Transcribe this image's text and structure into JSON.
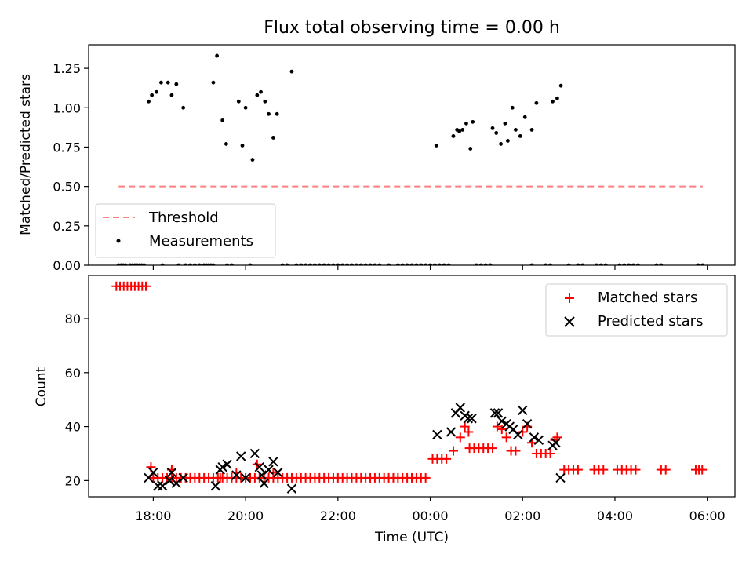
{
  "chart_data": [
    {
      "type": "scatter",
      "title": "Flux total observing time = 0.00 h",
      "xlabel": "",
      "ylabel": "Matched/Predicted stars",
      "xlim_hours": [
        16.6,
        30.6
      ],
      "ylim": [
        0,
        1.4
      ],
      "yticks": [
        0.0,
        0.25,
        0.5,
        0.75,
        1.0,
        1.25
      ],
      "ytick_labels": [
        "0.00",
        "0.25",
        "0.50",
        "0.75",
        "1.00",
        "1.25"
      ],
      "xticks_hours": [
        18,
        20,
        22,
        24,
        26,
        28,
        30
      ],
      "show_xtick_labels": false,
      "legend": [
        "Threshold",
        "Measurements"
      ],
      "legend_position": "lower-left",
      "threshold": {
        "name": "Threshold",
        "y": 0.5,
        "x_start": 17.25,
        "x_end": 29.9,
        "color": "#ff7f7f",
        "style": "dashed"
      },
      "measurements": {
        "name": "Measurements",
        "color": "#000000",
        "x": [
          17.9,
          17.97,
          18.07,
          18.17,
          18.32,
          18.4,
          18.5,
          18.65,
          19.3,
          19.38,
          19.5,
          19.58,
          19.85,
          19.93,
          20.0,
          20.15,
          20.25,
          20.33,
          20.42,
          20.5,
          20.6,
          20.68,
          21.0,
          24.13,
          24.5,
          24.58,
          24.63,
          24.7,
          24.78,
          24.87,
          24.92,
          25.35,
          25.43,
          25.53,
          25.62,
          25.68,
          25.78,
          25.85,
          25.95,
          26.05,
          26.2,
          26.3,
          26.65,
          26.75,
          26.83
        ],
        "y": [
          1.04,
          1.08,
          1.1,
          1.16,
          1.16,
          1.08,
          1.15,
          1.0,
          1.16,
          1.33,
          0.92,
          0.77,
          1.04,
          0.76,
          1.0,
          0.67,
          1.08,
          1.1,
          1.04,
          0.96,
          0.81,
          0.96,
          1.23,
          0.76,
          0.82,
          0.86,
          0.85,
          0.86,
          0.9,
          0.74,
          0.91,
          0.87,
          0.84,
          0.77,
          0.9,
          0.79,
          1.0,
          0.86,
          0.82,
          0.94,
          0.86,
          1.03,
          1.04,
          1.06,
          1.14
        ]
      },
      "zero_measurements_x": [
        17.25,
        17.3,
        17.35,
        17.4,
        17.5,
        17.55,
        17.6,
        17.65,
        17.7,
        17.75,
        17.8,
        18.2,
        18.55,
        18.7,
        18.8,
        18.9,
        19.0,
        19.1,
        19.15,
        19.2,
        19.25,
        19.3,
        19.6,
        19.7,
        20.1,
        20.8,
        20.9,
        21.1,
        21.2,
        21.3,
        21.4,
        21.5,
        21.6,
        21.7,
        21.8,
        21.9,
        22.0,
        22.1,
        22.2,
        22.3,
        22.4,
        22.5,
        22.6,
        22.7,
        22.8,
        22.9,
        23.1,
        23.3,
        23.4,
        23.5,
        23.6,
        23.7,
        23.8,
        23.9,
        24.0,
        24.1,
        24.2,
        24.3,
        24.4,
        25.0,
        25.1,
        25.2,
        25.3,
        26.2,
        26.5,
        26.6,
        27.0,
        27.2,
        27.3,
        27.6,
        27.7,
        27.8,
        28.1,
        28.2,
        28.3,
        28.4,
        28.5,
        28.9,
        29.0,
        29.8,
        29.9
      ]
    },
    {
      "type": "scatter",
      "title": "",
      "xlabel": "Time (UTC)",
      "ylabel": "Count",
      "xlim_hours": [
        16.6,
        30.6
      ],
      "ylim": [
        14,
        96
      ],
      "yticks": [
        20,
        40,
        60,
        80
      ],
      "ytick_labels": [
        "20",
        "40",
        "60",
        "80"
      ],
      "xticks_hours": [
        18,
        20,
        22,
        24,
        26,
        28,
        30
      ],
      "xtick_labels": [
        "18:00",
        "20:00",
        "22:00",
        "00:00",
        "02:00",
        "04:00",
        "06:00"
      ],
      "legend": [
        "Matched stars",
        "Predicted stars"
      ],
      "legend_position": "top-right",
      "series": [
        {
          "name": "Matched stars",
          "marker": "plus",
          "color": "#ff0000",
          "segments": [
            {
              "x_start": 17.2,
              "x_end": 17.85,
              "step": 0.08,
              "y": 92
            },
            {
              "x_start": 18.0,
              "x_end": 23.95,
              "step": 0.1,
              "y": 21
            },
            {
              "x_start": 24.05,
              "x_end": 24.35,
              "step": 0.1,
              "y": 28
            },
            {
              "x_start": 24.85,
              "x_end": 25.35,
              "step": 0.1,
              "y": 32
            },
            {
              "x_start": 26.3,
              "x_end": 26.6,
              "step": 0.1,
              "y": 30
            },
            {
              "x_start": 26.9,
              "x_end": 27.2,
              "step": 0.1,
              "y": 24
            },
            {
              "x_start": 27.55,
              "x_end": 27.75,
              "step": 0.1,
              "y": 24
            },
            {
              "x_start": 28.05,
              "x_end": 28.45,
              "step": 0.1,
              "y": 24
            },
            {
              "x_start": 29.0,
              "x_end": 29.1,
              "step": 0.1,
              "y": 24
            },
            {
              "x_start": 29.75,
              "x_end": 29.9,
              "step": 0.07,
              "y": 24
            }
          ],
          "x": [
            17.95,
            18.4,
            19.45,
            19.8,
            20.25,
            20.6,
            24.5,
            24.65,
            24.75,
            24.83,
            25.45,
            25.55,
            25.65,
            25.75,
            25.85,
            26.0,
            26.1,
            26.2,
            26.7,
            26.75
          ],
          "y": [
            25,
            24,
            21,
            23,
            26,
            23,
            31,
            36,
            40,
            38,
            40,
            39,
            36,
            31,
            31,
            38,
            40,
            34,
            35,
            36
          ]
        },
        {
          "name": "Predicted stars",
          "marker": "x",
          "color": "#000000",
          "x": [
            17.9,
            18.0,
            18.1,
            18.2,
            18.35,
            18.4,
            18.5,
            18.65,
            19.35,
            19.45,
            19.5,
            19.6,
            19.8,
            19.9,
            20.0,
            20.2,
            20.3,
            20.35,
            20.4,
            20.5,
            20.6,
            20.7,
            21.0,
            24.15,
            24.45,
            24.55,
            24.65,
            24.75,
            24.82,
            24.9,
            25.4,
            25.47,
            25.55,
            25.65,
            25.72,
            25.8,
            25.9,
            26.0,
            26.1,
            26.25,
            26.35,
            26.65,
            26.72,
            26.82
          ],
          "y": [
            21,
            23,
            18,
            18,
            20,
            23,
            19,
            21,
            18,
            24,
            25,
            26,
            22,
            29,
            21,
            30,
            25,
            22,
            19,
            24,
            27,
            23,
            17,
            37,
            38,
            45,
            47,
            44,
            43,
            43,
            45,
            45,
            42,
            41,
            40,
            39,
            37,
            46,
            41,
            36,
            35,
            33,
            34,
            21
          ]
        }
      ]
    }
  ]
}
